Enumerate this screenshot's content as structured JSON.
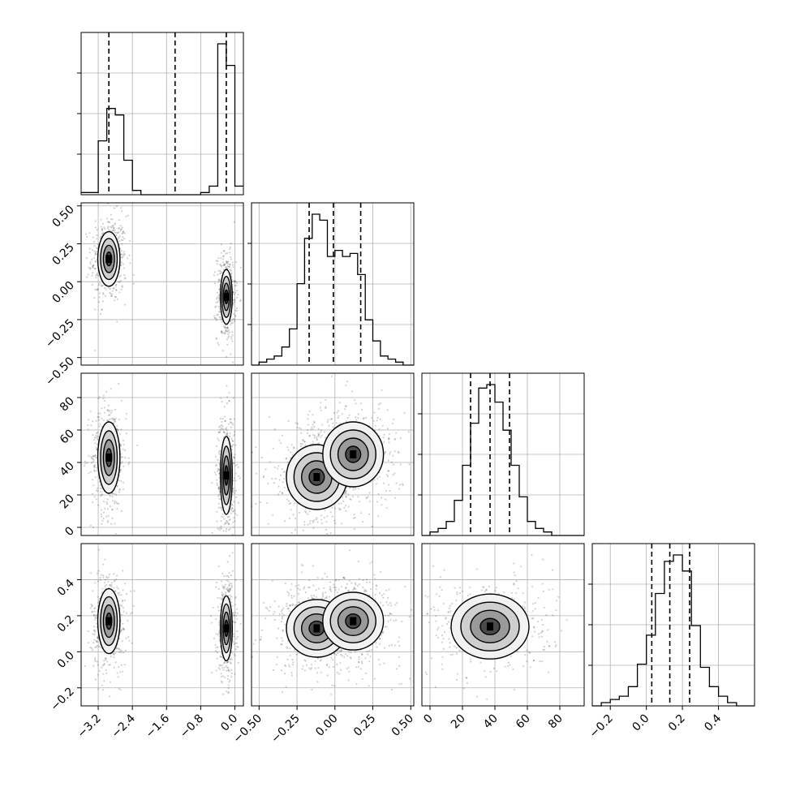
{
  "chart_data": {
    "type": "corner",
    "title": "",
    "parameters": [
      {
        "name": "",
        "range": [
          -3.6,
          0.2
        ],
        "ticks": [
          -3.2,
          -2.4,
          -1.6,
          -0.8,
          0.0
        ],
        "tick_labels": [
          "−3.2",
          "−2.4",
          "−1.6",
          "−0.8",
          "0.0"
        ],
        "quantile_lines": [
          -2.95,
          -1.4,
          -0.2
        ],
        "histogram": {
          "bins": [
            -3.6,
            -3.4,
            -3.2,
            -3.0,
            -2.8,
            -2.6,
            -2.4,
            -2.2,
            -2.0,
            -1.8,
            -1.6,
            -1.4,
            -1.2,
            -1.0,
            -0.8,
            -0.6,
            -0.4,
            -0.2,
            0.0,
            0.2
          ],
          "counts": [
            1,
            1,
            25,
            40,
            37,
            16,
            2,
            0,
            0,
            0,
            0,
            0,
            0,
            0,
            1,
            4,
            70,
            60,
            4
          ]
        }
      },
      {
        "name": "",
        "range": [
          -0.55,
          0.52
        ],
        "ticks": [
          -0.5,
          -0.25,
          0.0,
          0.25,
          0.5
        ],
        "tick_labels": [
          "−0.50",
          "−0.25",
          "0.00",
          "0.25",
          "0.50"
        ],
        "quantile_lines": [
          -0.17,
          -0.01,
          0.17
        ],
        "histogram": {
          "bins": [
            -0.55,
            -0.5,
            -0.45,
            -0.4,
            -0.35,
            -0.3,
            -0.25,
            -0.2,
            -0.15,
            -0.1,
            -0.05,
            0.0,
            0.05,
            0.1,
            0.15,
            0.2,
            0.25,
            0.3,
            0.35,
            0.4,
            0.45,
            0.52
          ],
          "counts": [
            0,
            1,
            2,
            3,
            6,
            12,
            27,
            42,
            50,
            48,
            36,
            38,
            36,
            37,
            30,
            15,
            8,
            3,
            2,
            1,
            0
          ]
        }
      },
      {
        "name": "",
        "range": [
          -5,
          95
        ],
        "ticks": [
          0,
          20,
          40,
          60,
          80
        ],
        "tick_labels": [
          "0",
          "20",
          "40",
          "60",
          "80"
        ],
        "quantile_lines": [
          25,
          37,
          49
        ],
        "histogram": {
          "bins": [
            -5,
            0,
            5,
            10,
            15,
            20,
            25,
            30,
            35,
            40,
            45,
            50,
            55,
            60,
            65,
            70,
            75,
            80,
            85,
            90,
            95
          ],
          "counts": [
            0,
            1,
            2,
            4,
            10,
            20,
            32,
            42,
            43,
            38,
            30,
            20,
            11,
            4,
            2,
            1,
            0,
            0,
            0,
            0
          ]
        }
      },
      {
        "name": "",
        "range": [
          -0.3,
          0.6
        ],
        "ticks": [
          -0.2,
          0.0,
          0.2,
          0.4
        ],
        "tick_labels": [
          "−0.2",
          "0.0",
          "0.2",
          "0.4"
        ],
        "y_ticks": [
          -0.2,
          0.0,
          0.2,
          0.4
        ],
        "y_tick_labels": [
          "−0.2",
          "0.0",
          "0.2",
          "0.4"
        ],
        "quantile_lines": [
          0.03,
          0.13,
          0.24
        ],
        "histogram": {
          "bins": [
            -0.3,
            -0.25,
            -0.2,
            -0.15,
            -0.1,
            -0.05,
            0.0,
            0.05,
            0.1,
            0.15,
            0.2,
            0.25,
            0.3,
            0.35,
            0.4,
            0.45,
            0.5,
            0.55,
            0.6
          ],
          "counts": [
            0,
            1,
            2,
            3,
            6,
            13,
            22,
            35,
            45,
            47,
            42,
            25,
            12,
            6,
            3,
            1,
            0,
            0
          ]
        }
      }
    ],
    "scatter_blobs": [
      {
        "x": 0,
        "y": 1,
        "modes": [
          {
            "cx": -2.95,
            "cy": 0.15,
            "sx": 0.13,
            "sy": 0.09
          },
          {
            "cx": -0.2,
            "cy": -0.1,
            "sx": 0.07,
            "sy": 0.09
          }
        ]
      },
      {
        "x": 0,
        "y": 2,
        "modes": [
          {
            "cx": -2.95,
            "cy": 43,
            "sx": 0.13,
            "sy": 11
          },
          {
            "cx": -0.2,
            "cy": 32,
            "sx": 0.07,
            "sy": 12
          }
        ]
      },
      {
        "x": 0,
        "y": 3,
        "modes": [
          {
            "cx": -2.95,
            "cy": 0.17,
            "sx": 0.13,
            "sy": 0.09
          },
          {
            "cx": -0.2,
            "cy": 0.13,
            "sx": 0.07,
            "sy": 0.09
          }
        ]
      },
      {
        "x": 1,
        "y": 2,
        "modes": [
          {
            "cx": -0.12,
            "cy": 31,
            "sx": 0.1,
            "sy": 10
          },
          {
            "cx": 0.12,
            "cy": 45,
            "sx": 0.1,
            "sy": 10
          }
        ]
      },
      {
        "x": 1,
        "y": 3,
        "modes": [
          {
            "cx": -0.12,
            "cy": 0.13,
            "sx": 0.1,
            "sy": 0.08
          },
          {
            "cx": 0.12,
            "cy": 0.17,
            "sx": 0.1,
            "sy": 0.08
          }
        ]
      },
      {
        "x": 2,
        "y": 3,
        "modes": [
          {
            "cx": 37,
            "cy": 0.14,
            "sx": 12,
            "sy": 0.09
          }
        ]
      }
    ]
  }
}
